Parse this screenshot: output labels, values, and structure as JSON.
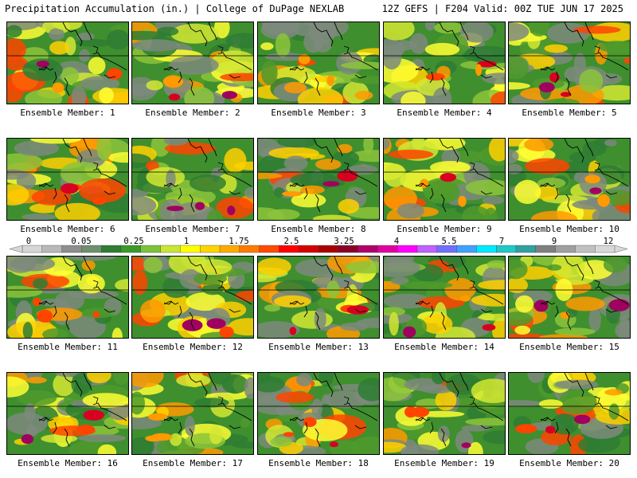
{
  "header": {
    "title": "Precipitation Accumulation (in.) | College of DuPage NEXLAB",
    "run_info": "12Z GEFS | F204 Valid: 00Z TUE JUN 17 2025"
  },
  "colorbar": {
    "labels": [
      "0",
      "0.05",
      "0.25",
      "1",
      "1.75",
      "2.5",
      "3.25",
      "4",
      "5.5",
      "7",
      "9",
      "12"
    ],
    "colors": [
      "#d6d6d6",
      "#b8b8b8",
      "#8e8e8e",
      "#6f8f6f",
      "#2e7d32",
      "#3a9a2a",
      "#7cc23a",
      "#c8e632",
      "#ffff00",
      "#ffd400",
      "#ffaa00",
      "#ff7b00",
      "#ff4a00",
      "#ff0000",
      "#d40000",
      "#aa0000",
      "#8b0027",
      "#b0006a",
      "#e000a0",
      "#ff00ff",
      "#c060ff",
      "#7070ff",
      "#40a0ff",
      "#00e8ff",
      "#20c8c8",
      "#30a0a0",
      "#808080",
      "#a0a0a0",
      "#c0c0c0",
      "#d8d8d8"
    ]
  },
  "panels": [
    {
      "caption": "Ensemble Member: 1"
    },
    {
      "caption": "Ensemble Member: 2"
    },
    {
      "caption": "Ensemble Member: 3"
    },
    {
      "caption": "Ensemble Member: 4"
    },
    {
      "caption": "Ensemble Member: 5"
    },
    {
      "caption": "Ensemble Member: 6"
    },
    {
      "caption": "Ensemble Member: 7"
    },
    {
      "caption": "Ensemble Member: 8"
    },
    {
      "caption": "Ensemble Member: 9"
    },
    {
      "caption": "Ensemble Member: 10"
    },
    {
      "caption": "Ensemble Member: 11"
    },
    {
      "caption": "Ensemble Member: 12"
    },
    {
      "caption": "Ensemble Member: 13"
    },
    {
      "caption": "Ensemble Member: 14"
    },
    {
      "caption": "Ensemble Member: 15"
    },
    {
      "caption": "Ensemble Member: 16"
    },
    {
      "caption": "Ensemble Member: 17"
    },
    {
      "caption": "Ensemble Member: 18"
    },
    {
      "caption": "Ensemble Member: 19"
    },
    {
      "caption": "Ensemble Member: 20"
    }
  ]
}
